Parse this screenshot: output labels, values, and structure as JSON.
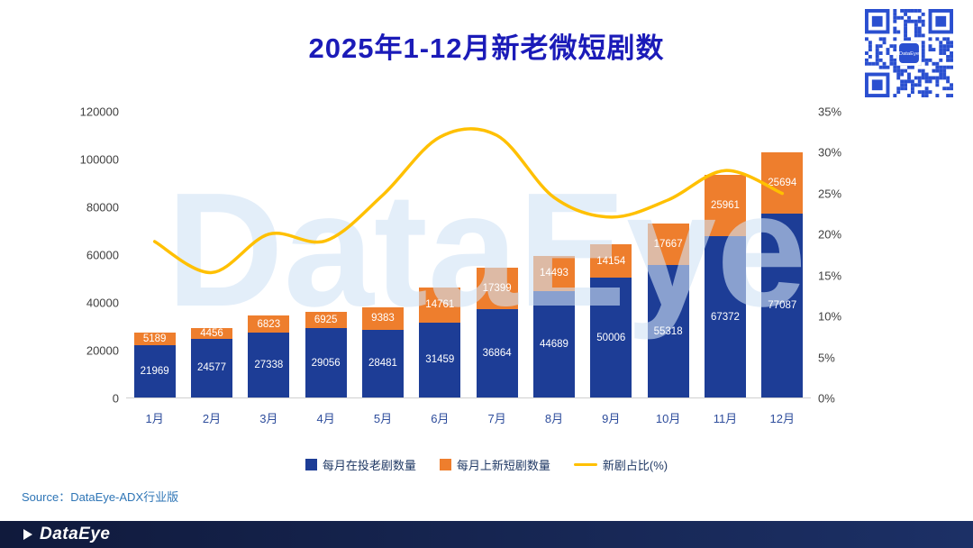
{
  "title": "2025年1-12月新老微短剧数",
  "watermark": "DataEye",
  "source": "Source：DataEye-ADX行业版",
  "footer": {
    "logo": "DataEye"
  },
  "colors": {
    "old_bar": "#1d3d96",
    "new_bar": "#ee7e2d",
    "line": "#ffc000",
    "title": "#1b1bb8",
    "qr": "#2a4fd0"
  },
  "chart_data": {
    "type": "bar",
    "categories": [
      "1月",
      "2月",
      "3月",
      "4月",
      "5月",
      "6月",
      "7月",
      "8月",
      "9月",
      "10月",
      "11月",
      "12月"
    ],
    "series": [
      {
        "name": "每月在投老剧数量",
        "type": "bar",
        "stack": true,
        "values": [
          21969,
          24577,
          27338,
          29056,
          28481,
          31459,
          36864,
          44689,
          50006,
          55318,
          67372,
          77087
        ]
      },
      {
        "name": "每月上新短剧数量",
        "type": "bar",
        "stack": true,
        "values": [
          5189,
          4456,
          6823,
          6925,
          9383,
          14761,
          17399,
          14493,
          14154,
          17667,
          25961,
          25694
        ]
      },
      {
        "name": "新剧占比(%)",
        "type": "line",
        "axis": "right",
        "values": [
          19.1,
          15.3,
          20.0,
          19.2,
          24.8,
          31.9,
          32.1,
          24.5,
          22.1,
          24.2,
          27.8,
          25.0
        ]
      }
    ],
    "left_axis": {
      "ticks": [
        0,
        20000,
        40000,
        60000,
        80000,
        100000,
        120000
      ],
      "max": 120000
    },
    "right_axis": {
      "ticks": [
        0,
        5,
        10,
        15,
        20,
        25,
        30,
        35
      ],
      "max": 35,
      "suffix": "%"
    },
    "legend": [
      "每月在投老剧数量",
      "每月上新短剧数量",
      "新剧占比(%)"
    ],
    "grid": false,
    "legend_position": "bottom"
  }
}
